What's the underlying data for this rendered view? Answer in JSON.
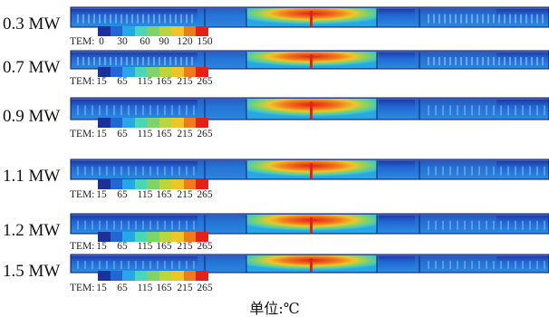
{
  "rows": [
    {
      "label": "0.3 MW",
      "ticks": [
        "0",
        "30",
        "60",
        "90",
        "120",
        "150"
      ]
    },
    {
      "label": "0.7 MW",
      "ticks": [
        "15",
        "65",
        "115",
        "165",
        "215",
        "265"
      ]
    },
    {
      "label": "0.9 MW",
      "ticks": [
        "15",
        "65",
        "115",
        "165",
        "215",
        "265"
      ]
    },
    {
      "label": "1.1 MW",
      "ticks": [
        "15",
        "65",
        "115",
        "165",
        "215",
        "265"
      ]
    },
    {
      "label": "1.2 MW",
      "ticks": [
        "15",
        "65",
        "115",
        "165",
        "215",
        "265"
      ]
    },
    {
      "label": "1.5 MW",
      "ticks": [
        "15",
        "65",
        "115",
        "165",
        "215",
        "265"
      ]
    }
  ],
  "legend_prefix": "TEM:",
  "legend_colors": [
    "#1d2f9a",
    "#2166d4",
    "#26a8e8",
    "#4cd6b8",
    "#7fd36a",
    "#b8d83a",
    "#f0c52a",
    "#f07a1e",
    "#e22218"
  ],
  "unit_label": "单位:℃"
}
